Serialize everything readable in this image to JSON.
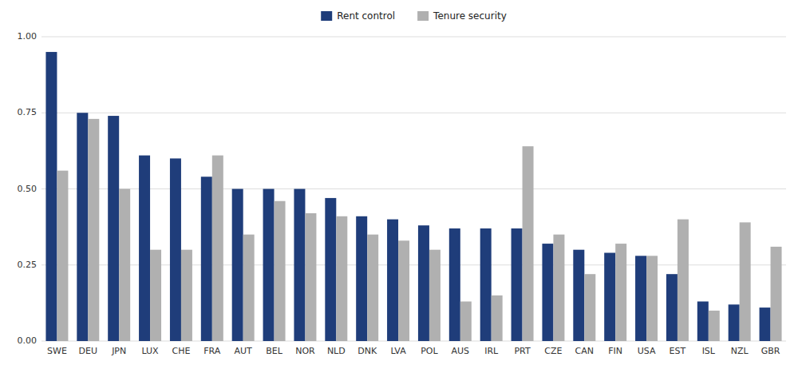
{
  "chart_data": {
    "type": "bar",
    "categories": [
      "SWE",
      "DEU",
      "JPN",
      "LUX",
      "CHE",
      "FRA",
      "AUT",
      "BEL",
      "NOR",
      "NLD",
      "DNK",
      "LVA",
      "POL",
      "AUS",
      "IRL",
      "PRT",
      "CZE",
      "CAN",
      "FIN",
      "USA",
      "EST",
      "ISL",
      "NZL",
      "GBR"
    ],
    "series": [
      {
        "name": "Rent control",
        "color": "#1f3d7a",
        "values": [
          0.95,
          0.75,
          0.74,
          0.61,
          0.6,
          0.54,
          0.5,
          0.5,
          0.5,
          0.47,
          0.41,
          0.4,
          0.38,
          0.37,
          0.37,
          0.37,
          0.32,
          0.3,
          0.29,
          0.28,
          0.22,
          0.13,
          0.12,
          0.11
        ]
      },
      {
        "name": "Tenure security",
        "color": "#b0b0b0",
        "values": [
          0.56,
          0.73,
          0.5,
          0.3,
          0.3,
          0.61,
          0.35,
          0.46,
          0.42,
          0.41,
          0.35,
          0.33,
          0.3,
          0.13,
          0.15,
          0.64,
          0.35,
          0.22,
          0.32,
          0.28,
          0.4,
          0.1,
          0.39,
          0.31
        ]
      }
    ],
    "ylim": [
      0.0,
      1.0
    ],
    "yticks": [
      {
        "value": 0.0,
        "label": "0.00"
      },
      {
        "value": 0.25,
        "label": "0.25"
      },
      {
        "value": 0.5,
        "label": "0.50"
      },
      {
        "value": 0.75,
        "label": "0.75"
      },
      {
        "value": 1.0,
        "label": "1.00"
      }
    ],
    "grid": true,
    "legend": "top"
  }
}
